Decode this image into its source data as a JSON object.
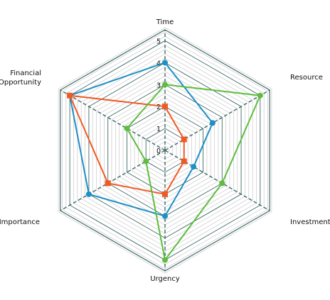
{
  "chart_data": {
    "type": "radar",
    "axes": [
      "Time",
      "Resource",
      "Investment",
      "Urgency",
      "Importance",
      "Financial\nOpportunity"
    ],
    "tick_labels": [
      "0",
      "1",
      "2",
      "3",
      "4",
      "5"
    ],
    "rmax": 5.5,
    "legend": "none",
    "series": [
      {
        "color": "#1f8fc4",
        "values": [
          4,
          2.5,
          1.5,
          3,
          4,
          5
        ]
      },
      {
        "color": "#ef5a24",
        "values": [
          2,
          1,
          1,
          2,
          3,
          5
        ]
      },
      {
        "color": "#5ebd3e",
        "values": [
          3,
          5,
          3,
          5,
          1,
          2
        ]
      }
    ],
    "colors": {
      "grid": "#3f6b68",
      "minor_grid": "#c9c9c9",
      "spoke": "#3f6b68"
    }
  }
}
